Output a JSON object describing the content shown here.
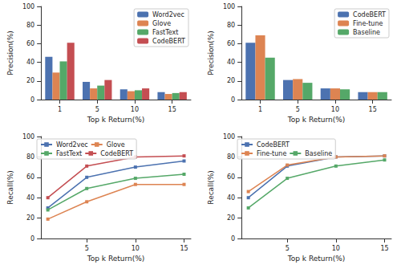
{
  "chart_data": [
    {
      "type": "bar",
      "x_label": "Top k Return(%)",
      "y_label": "Precision(%)",
      "categories": [
        "1",
        "5",
        "10",
        "15"
      ],
      "series": [
        {
          "name": "Word2vec",
          "color": "#4c72b0",
          "values": [
            46,
            19,
            11,
            8
          ]
        },
        {
          "name": "Glove",
          "color": "#dd8452",
          "values": [
            29,
            12,
            9,
            6
          ]
        },
        {
          "name": "FastText",
          "color": "#55a868",
          "values": [
            41,
            15,
            10,
            7
          ]
        },
        {
          "name": "CodeBERT",
          "color": "#c44e52",
          "values": [
            61,
            21,
            12,
            8
          ]
        }
      ],
      "ylim": [
        0,
        100
      ],
      "yticks": [
        0,
        20,
        40,
        60,
        80,
        100
      ],
      "grid": false,
      "legend": "upper right"
    },
    {
      "type": "bar",
      "x_label": "Top k Return(%)",
      "y_label": "Precision(%)",
      "categories": [
        "1",
        "5",
        "10",
        "15"
      ],
      "series": [
        {
          "name": "CodeBERT",
          "color": "#4c72b0",
          "values": [
            61,
            21,
            12,
            8
          ]
        },
        {
          "name": "Fine-tune",
          "color": "#dd8452",
          "values": [
            69,
            22,
            12,
            8
          ]
        },
        {
          "name": "Baseline",
          "color": "#55a868",
          "values": [
            45,
            18,
            11,
            8
          ]
        }
      ],
      "ylim": [
        0,
        100
      ],
      "yticks": [
        0,
        20,
        40,
        60,
        80,
        100
      ],
      "grid": false,
      "legend": "upper right"
    },
    {
      "type": "line",
      "x_label": "Top k Return(%)",
      "y_label": "Recall(%)",
      "x": [
        1,
        5,
        10,
        15
      ],
      "series": [
        {
          "name": "Word2vec",
          "color": "#4c72b0",
          "values": [
            30,
            60,
            70,
            76
          ]
        },
        {
          "name": "Glove",
          "color": "#dd8452",
          "values": [
            19,
            36,
            53,
            53
          ]
        },
        {
          "name": "FastText",
          "color": "#55a868",
          "values": [
            28,
            49,
            59,
            63
          ]
        },
        {
          "name": "CodeBERT",
          "color": "#c44e52",
          "values": [
            40,
            71,
            80,
            81
          ]
        }
      ],
      "xlim": [
        0.3,
        15.7
      ],
      "xticks": [
        5,
        10,
        15
      ],
      "ylim": [
        0,
        100
      ],
      "yticks": [
        0,
        20,
        40,
        60,
        80,
        100
      ],
      "grid": false,
      "legend": "upper left",
      "marker": "square",
      "line_style": "solid"
    },
    {
      "type": "line",
      "x_label": "Top k Return(%)",
      "y_label": "Recall(%)",
      "x": [
        1,
        5,
        10,
        15
      ],
      "series": [
        {
          "name": "CodeBERT",
          "color": "#4c72b0",
          "values": [
            40,
            71,
            80,
            81
          ]
        },
        {
          "name": "Fine-tune",
          "color": "#dd8452",
          "values": [
            46,
            72,
            80,
            81
          ]
        },
        {
          "name": "Baseline",
          "color": "#55a868",
          "values": [
            30,
            59,
            71,
            77
          ]
        }
      ],
      "xlim": [
        0.3,
        15.7
      ],
      "xticks": [
        5,
        10,
        15
      ],
      "ylim": [
        0,
        100
      ],
      "yticks": [
        0,
        20,
        40,
        60,
        80,
        100
      ],
      "grid": false,
      "legend": "upper left",
      "marker": "square",
      "line_style": "solid"
    }
  ]
}
